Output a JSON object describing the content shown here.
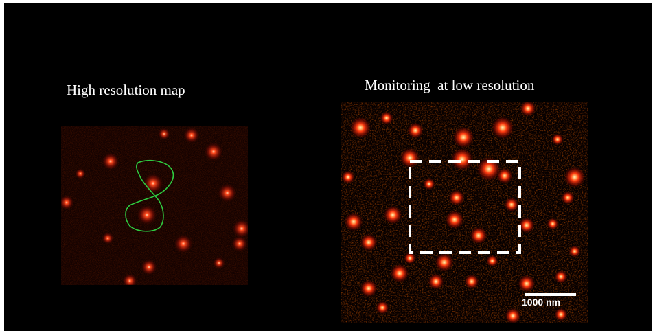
{
  "panels": {
    "left": {
      "caption": "High resolution map",
      "colors": {
        "spot": "#ff3a1a",
        "core": "#ffd0a0",
        "outline": "#2ecc40"
      }
    },
    "right": {
      "caption": "Monitoring  at low resolution",
      "colors": {
        "spot": "#ff3a1a",
        "core": "#ffe8c0",
        "roi": "#ffffff"
      }
    }
  },
  "scale_bar": {
    "label": "1000 nm"
  }
}
